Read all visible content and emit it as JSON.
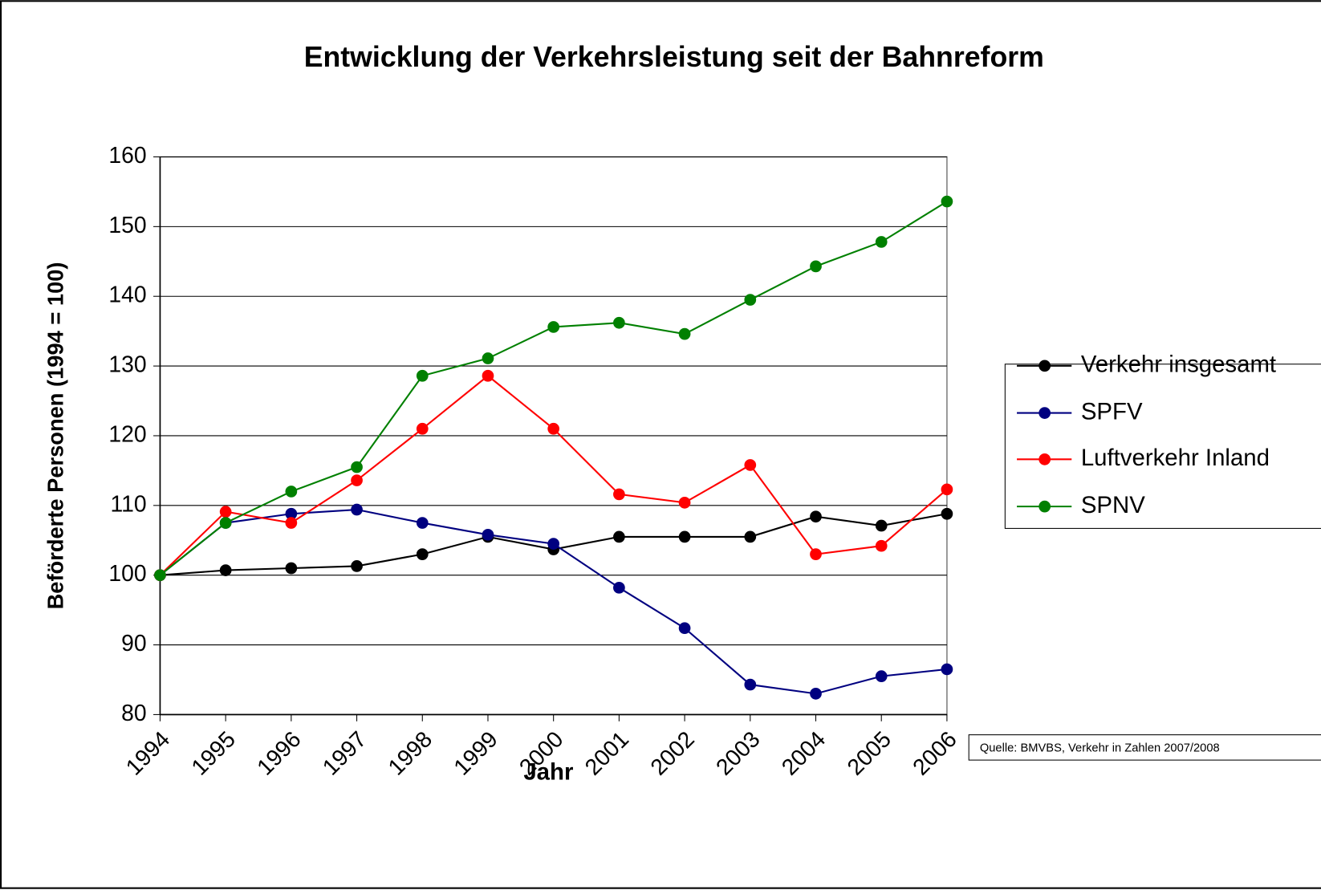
{
  "chart_data": {
    "type": "line",
    "title": "Entwicklung der Verkehrsleistung seit der Bahnreform",
    "y_label": "Beförderte Personen (1994 = 100)",
    "x_label": "Jahr",
    "source": "Quelle: BMVBS, Verkehr in Zahlen 2007/2008",
    "categories": [
      "1994",
      "1995",
      "1996",
      "1997",
      "1998",
      "1999",
      "2000",
      "2001",
      "2002",
      "2003",
      "2004",
      "2005",
      "2006"
    ],
    "series": [
      {
        "name": "Verkehr insgesamt",
        "color": "#000000",
        "values": [
          100,
          100.7,
          101,
          101.3,
          103,
          105.5,
          103.7,
          105.5,
          105.5,
          105.5,
          108.4,
          107.1,
          108.8
        ]
      },
      {
        "name": "SPFV",
        "color": "#000080",
        "values": [
          100,
          107.5,
          108.8,
          109.4,
          107.5,
          105.8,
          104.5,
          98.2,
          92.4,
          84.3,
          83,
          85.5,
          86.5
        ]
      },
      {
        "name": "Luftverkehr Inland",
        "color": "#ff0000",
        "values": [
          100,
          109.1,
          107.5,
          113.6,
          121,
          128.6,
          121,
          111.6,
          110.4,
          115.8,
          103,
          104.2,
          112.3
        ]
      },
      {
        "name": "SPNV",
        "color": "#008000",
        "values": [
          100,
          107.5,
          112,
          115.5,
          128.6,
          131.1,
          135.6,
          136.2,
          134.6,
          139.5,
          144.3,
          147.8,
          153.6
        ]
      }
    ],
    "ylim": [
      80,
      160
    ],
    "yticks": [
      80,
      90,
      100,
      110,
      120,
      130,
      140,
      150,
      160
    ],
    "grid": true,
    "legend": "right"
  }
}
